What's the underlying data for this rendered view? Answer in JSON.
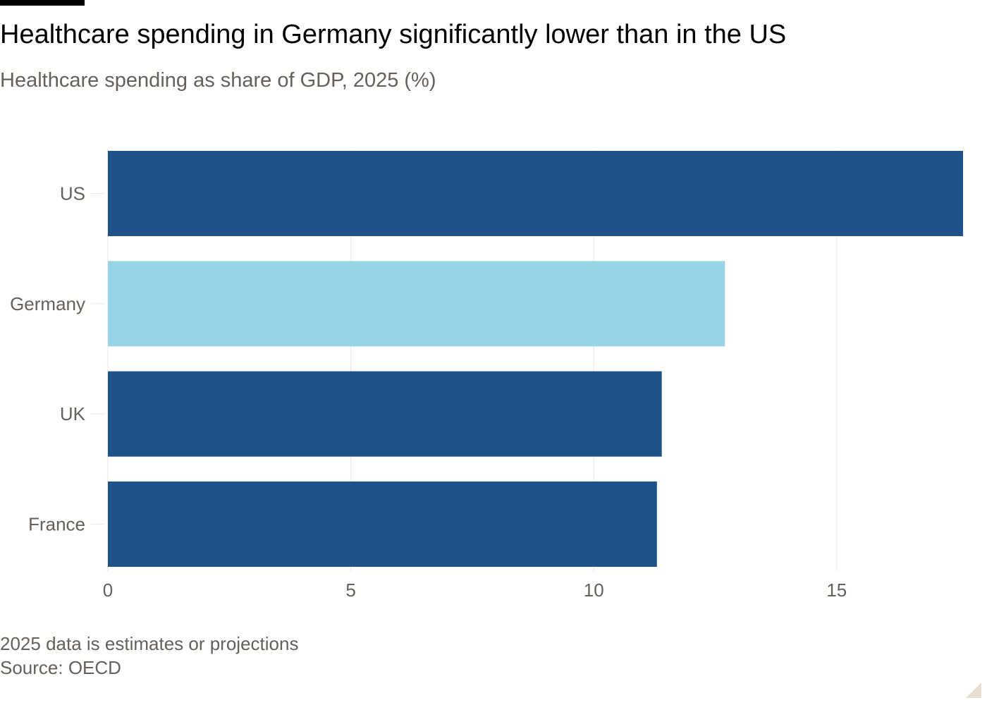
{
  "header": {
    "title": "Healthcare spending in Germany significantly lower than in the US",
    "subtitle": "Healthcare spending as share of GDP, 2025 (%)"
  },
  "footer": {
    "note": "2025 data is estimates or projections",
    "source": "Source: OECD"
  },
  "colors": {
    "bar_default": "#1f5289",
    "bar_highlight": "#96d4e6",
    "gridline": "#ebe7e3",
    "tick_text": "#66605c"
  },
  "chart_data": {
    "type": "bar",
    "orientation": "horizontal",
    "title": "Healthcare spending in Germany significantly lower than in the US",
    "subtitle": "Healthcare spending as share of GDP, 2025 (%)",
    "categories": [
      "US",
      "Germany",
      "UK",
      "France"
    ],
    "values": [
      17.6,
      12.7,
      11.4,
      11.3
    ],
    "highlight": "Germany",
    "xlim": [
      0,
      17.6
    ],
    "xticks": [
      0,
      5,
      10,
      15
    ],
    "xlabel": "",
    "ylabel": "",
    "grid": "vertical",
    "legend": "none"
  }
}
